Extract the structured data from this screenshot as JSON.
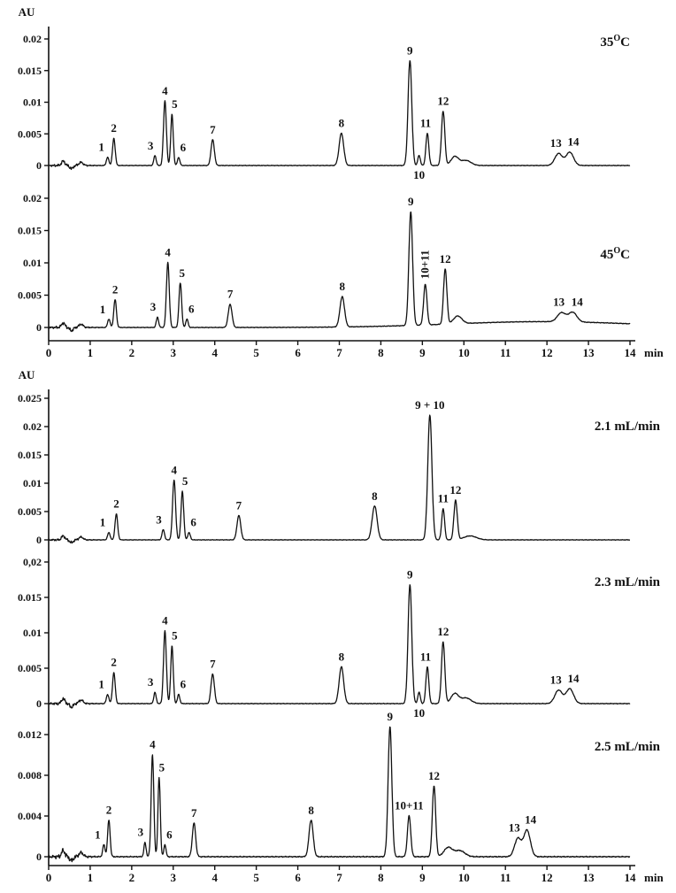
{
  "figure": {
    "background": "#ffffff",
    "trace_color": "#111111"
  },
  "chart_data": [
    {
      "type": "line",
      "kind": "chromatogram",
      "xlabel": "min",
      "ylabel": "AU",
      "xlim": [
        0,
        14
      ],
      "x_ticks": [
        0,
        1,
        2,
        3,
        4,
        5,
        6,
        7,
        8,
        9,
        10,
        11,
        12,
        13,
        14
      ],
      "panels": [
        {
          "annotation": {
            "main": "35",
            "sup": "O",
            "tail": "C"
          },
          "y_ticks": [
            0.02,
            0.015,
            0.01,
            0.005,
            0
          ],
          "y_tick_labels": [
            "0.02",
            "0.015",
            "0.01",
            "0.005",
            "0"
          ],
          "peaks": [
            {
              "label": "1",
              "t": 1.42,
              "height": 0.0013,
              "sigma": 0.03,
              "label_dx": -7
            },
            {
              "label": "2",
              "t": 1.57,
              "height": 0.0043,
              "sigma": 0.032
            },
            {
              "label": "3",
              "t": 2.56,
              "height": 0.0016,
              "sigma": 0.028,
              "label_dx": -5
            },
            {
              "label": "4",
              "t": 2.8,
              "height": 0.0103,
              "sigma": 0.034
            },
            {
              "label": "5",
              "t": 2.97,
              "height": 0.0081,
              "sigma": 0.03,
              "label_dx": 3
            },
            {
              "label": "6",
              "t": 3.13,
              "height": 0.0013,
              "sigma": 0.028,
              "label_dx": 5
            },
            {
              "label": "7",
              "t": 3.95,
              "height": 0.0041,
              "sigma": 0.04
            },
            {
              "label": "8",
              "t": 7.05,
              "height": 0.0051,
              "sigma": 0.055
            },
            {
              "label": "9",
              "t": 8.7,
              "height": 0.0166,
              "sigma": 0.045
            },
            {
              "label": "10",
              "t": 8.92,
              "height": 0.0016,
              "sigma": 0.03,
              "label_pos": "below"
            },
            {
              "label": "11",
              "t": 9.12,
              "height": 0.0051,
              "sigma": 0.035,
              "label_dx": -2
            },
            {
              "label": "12",
              "t": 9.5,
              "height": 0.0086,
              "sigma": 0.04
            },
            {
              "label": "13",
              "t": 12.28,
              "height": 0.0019,
              "sigma": 0.09,
              "label_dx": -3
            },
            {
              "label": "14",
              "t": 12.55,
              "height": 0.0021,
              "sigma": 0.09,
              "label_dx": 4
            }
          ],
          "baseline_features": [
            {
              "t": 0.35,
              "height": 0.0007,
              "sigma": 0.04
            },
            {
              "t": 0.55,
              "height": -0.0005,
              "sigma": 0.04
            },
            {
              "t": 0.78,
              "height": 0.0005,
              "sigma": 0.05
            },
            {
              "t": 9.78,
              "height": 0.0014,
              "sigma": 0.09
            },
            {
              "t": 10.05,
              "height": 0.0008,
              "sigma": 0.12
            }
          ]
        },
        {
          "annotation": {
            "main": "45",
            "sup": "O",
            "tail": "C"
          },
          "y_ticks": [
            0.02,
            0.015,
            0.01,
            0.005,
            0
          ],
          "y_tick_labels": [
            "0.02",
            "0.015",
            "0.01",
            "0.005",
            "0"
          ],
          "peaks": [
            {
              "label": "1",
              "t": 1.45,
              "height": 0.0013,
              "sigma": 0.03,
              "label_dx": -7
            },
            {
              "label": "2",
              "t": 1.6,
              "height": 0.0043,
              "sigma": 0.032
            },
            {
              "label": "3",
              "t": 2.62,
              "height": 0.0016,
              "sigma": 0.028,
              "label_dx": -5
            },
            {
              "label": "4",
              "t": 2.87,
              "height": 0.0101,
              "sigma": 0.034
            },
            {
              "label": "5",
              "t": 3.17,
              "height": 0.0069,
              "sigma": 0.032,
              "label_dx": 2
            },
            {
              "label": "6",
              "t": 3.33,
              "height": 0.0013,
              "sigma": 0.028,
              "label_dx": 5
            },
            {
              "label": "7",
              "t": 4.37,
              "height": 0.0036,
              "sigma": 0.045
            },
            {
              "label": "8",
              "t": 7.07,
              "height": 0.0047,
              "sigma": 0.055
            },
            {
              "label": "9",
              "t": 8.72,
              "height": 0.0176,
              "sigma": 0.045
            },
            {
              "label": "10+11",
              "t": 9.07,
              "height": 0.0063,
              "sigma": 0.04,
              "label_pos": "vertical"
            },
            {
              "label": "12",
              "t": 9.55,
              "height": 0.0086,
              "sigma": 0.04
            },
            {
              "label": "13",
              "t": 12.35,
              "height": 0.0014,
              "sigma": 0.1,
              "label_dx": -3
            },
            {
              "label": "14",
              "t": 12.62,
              "height": 0.0015,
              "sigma": 0.1,
              "label_dx": 5
            }
          ],
          "baseline_features": [
            {
              "t": 0.35,
              "height": 0.0007,
              "sigma": 0.04
            },
            {
              "t": 0.55,
              "height": -0.0005,
              "sigma": 0.04
            },
            {
              "t": 0.78,
              "height": 0.0005,
              "sigma": 0.05
            },
            {
              "t": 9.85,
              "height": 0.0012,
              "sigma": 0.1
            },
            {
              "t": 11.9,
              "height": 0.0009,
              "sigma": 2.2
            }
          ]
        }
      ]
    },
    {
      "type": "line",
      "kind": "chromatogram",
      "xlabel": "min",
      "ylabel": "AU",
      "xlim": [
        0,
        14
      ],
      "x_ticks": [
        0,
        1,
        2,
        3,
        4,
        5,
        6,
        7,
        8,
        9,
        10,
        11,
        12,
        13,
        14
      ],
      "panels": [
        {
          "annotation": {
            "main": "2.1 mL/min"
          },
          "y_ticks": [
            0.025,
            0.02,
            0.015,
            0.01,
            0.005,
            0
          ],
          "y_tick_labels": [
            "0.025",
            "0.02",
            "0.015",
            "0.01",
            "0.005",
            "0"
          ],
          "peaks": [
            {
              "label": "1",
              "t": 1.45,
              "height": 0.0013,
              "sigma": 0.03,
              "label_dx": -7
            },
            {
              "label": "2",
              "t": 1.63,
              "height": 0.0046,
              "sigma": 0.032
            },
            {
              "label": "3",
              "t": 2.76,
              "height": 0.0018,
              "sigma": 0.03,
              "label_dx": -5
            },
            {
              "label": "4",
              "t": 3.02,
              "height": 0.0106,
              "sigma": 0.036
            },
            {
              "label": "5",
              "t": 3.22,
              "height": 0.0086,
              "sigma": 0.032,
              "label_dx": 3
            },
            {
              "label": "6",
              "t": 3.38,
              "height": 0.0013,
              "sigma": 0.03,
              "label_dx": 5
            },
            {
              "label": "7",
              "t": 4.58,
              "height": 0.0043,
              "sigma": 0.045
            },
            {
              "label": "8",
              "t": 7.85,
              "height": 0.006,
              "sigma": 0.06
            },
            {
              "label": "9 + 10",
              "t": 9.18,
              "height": 0.022,
              "sigma": 0.05
            },
            {
              "label": "11",
              "t": 9.5,
              "height": 0.0055,
              "sigma": 0.035
            },
            {
              "label": "12",
              "t": 9.8,
              "height": 0.007,
              "sigma": 0.04
            }
          ],
          "baseline_features": [
            {
              "t": 0.35,
              "height": 0.0007,
              "sigma": 0.04
            },
            {
              "t": 0.55,
              "height": -0.0005,
              "sigma": 0.04
            },
            {
              "t": 0.78,
              "height": 0.0005,
              "sigma": 0.05
            },
            {
              "t": 10.15,
              "height": 0.0007,
              "sigma": 0.15
            }
          ]
        },
        {
          "annotation": {
            "main": "2.3 mL/min"
          },
          "y_ticks": [
            0.02,
            0.015,
            0.01,
            0.005,
            0
          ],
          "y_tick_labels": [
            "0,02",
            "0.015",
            "0.01",
            "0.005",
            "0"
          ],
          "peaks": [
            {
              "label": "1",
              "t": 1.42,
              "height": 0.0013,
              "sigma": 0.03,
              "label_dx": -7
            },
            {
              "label": "2",
              "t": 1.57,
              "height": 0.0044,
              "sigma": 0.032
            },
            {
              "label": "3",
              "t": 2.56,
              "height": 0.0016,
              "sigma": 0.028,
              "label_dx": -5
            },
            {
              "label": "4",
              "t": 2.8,
              "height": 0.0103,
              "sigma": 0.034
            },
            {
              "label": "5",
              "t": 2.97,
              "height": 0.0082,
              "sigma": 0.03,
              "label_dx": 3
            },
            {
              "label": "6",
              "t": 3.13,
              "height": 0.0013,
              "sigma": 0.028,
              "label_dx": 5
            },
            {
              "label": "7",
              "t": 3.95,
              "height": 0.0042,
              "sigma": 0.04
            },
            {
              "label": "8",
              "t": 7.05,
              "height": 0.0052,
              "sigma": 0.055
            },
            {
              "label": "9",
              "t": 8.7,
              "height": 0.0168,
              "sigma": 0.045
            },
            {
              "label": "10",
              "t": 8.92,
              "height": 0.0016,
              "sigma": 0.03,
              "label_pos": "below"
            },
            {
              "label": "11",
              "t": 9.12,
              "height": 0.0052,
              "sigma": 0.035,
              "label_dx": -2
            },
            {
              "label": "12",
              "t": 9.5,
              "height": 0.0087,
              "sigma": 0.04
            },
            {
              "label": "13",
              "t": 12.28,
              "height": 0.0019,
              "sigma": 0.09,
              "label_dx": -3
            },
            {
              "label": "14",
              "t": 12.55,
              "height": 0.0021,
              "sigma": 0.09,
              "label_dx": 4
            }
          ],
          "baseline_features": [
            {
              "t": 0.35,
              "height": 0.0007,
              "sigma": 0.04
            },
            {
              "t": 0.55,
              "height": -0.0005,
              "sigma": 0.04
            },
            {
              "t": 0.78,
              "height": 0.0005,
              "sigma": 0.05
            },
            {
              "t": 9.78,
              "height": 0.0014,
              "sigma": 0.09
            },
            {
              "t": 10.05,
              "height": 0.0008,
              "sigma": 0.12
            }
          ]
        },
        {
          "annotation": {
            "main": "2.5 mL/min"
          },
          "y_ticks": [
            0.012,
            0.008,
            0.004,
            0
          ],
          "y_tick_labels": [
            "0.012",
            "0.008",
            "0.004",
            "0"
          ],
          "peaks": [
            {
              "label": "1",
              "t": 1.33,
              "height": 0.0012,
              "sigma": 0.028,
              "label_dx": -7
            },
            {
              "label": "2",
              "t": 1.45,
              "height": 0.0036,
              "sigma": 0.03
            },
            {
              "label": "3",
              "t": 2.32,
              "height": 0.0014,
              "sigma": 0.026,
              "label_dx": -5
            },
            {
              "label": "4",
              "t": 2.5,
              "height": 0.01,
              "sigma": 0.032
            },
            {
              "label": "5",
              "t": 2.66,
              "height": 0.0078,
              "sigma": 0.028,
              "label_dx": 3
            },
            {
              "label": "6",
              "t": 2.8,
              "height": 0.0012,
              "sigma": 0.026,
              "label_dx": 5
            },
            {
              "label": "7",
              "t": 3.5,
              "height": 0.0033,
              "sigma": 0.04
            },
            {
              "label": "8",
              "t": 6.32,
              "height": 0.0036,
              "sigma": 0.05
            },
            {
              "label": "9",
              "t": 8.22,
              "height": 0.0128,
              "sigma": 0.045
            },
            {
              "label": "10+11",
              "t": 8.68,
              "height": 0.004,
              "sigma": 0.04
            },
            {
              "label": "12",
              "t": 9.28,
              "height": 0.007,
              "sigma": 0.04
            },
            {
              "label": "13",
              "t": 11.3,
              "height": 0.0018,
              "sigma": 0.08,
              "label_dx": -4
            },
            {
              "label": "14",
              "t": 11.52,
              "height": 0.0026,
              "sigma": 0.08,
              "label_dx": 4
            }
          ],
          "baseline_features": [
            {
              "t": 0.35,
              "height": 0.0006,
              "sigma": 0.04
            },
            {
              "t": 0.55,
              "height": -0.0004,
              "sigma": 0.04
            },
            {
              "t": 0.78,
              "height": 0.0004,
              "sigma": 0.05
            },
            {
              "t": 9.62,
              "height": 0.0009,
              "sigma": 0.1
            },
            {
              "t": 9.9,
              "height": 0.0006,
              "sigma": 0.12
            }
          ]
        }
      ]
    }
  ]
}
